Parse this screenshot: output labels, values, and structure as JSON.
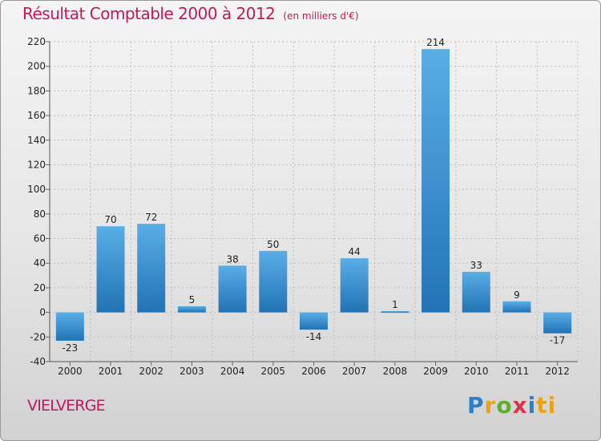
{
  "chart_data": {
    "type": "bar",
    "title": "Résultat Comptable 2000 à 2012",
    "subtitle": "(en milliers d'€)",
    "categories": [
      "2000",
      "2001",
      "2002",
      "2003",
      "2004",
      "2005",
      "2006",
      "2007",
      "2008",
      "2009",
      "2010",
      "2011",
      "2012"
    ],
    "values": [
      -23,
      70,
      72,
      5,
      38,
      50,
      -14,
      44,
      1,
      214,
      33,
      9,
      -17
    ],
    "value_labels": [
      "-23",
      "70",
      "72",
      "5",
      "38",
      "50",
      "-14",
      "44",
      "1",
      "214",
      "33",
      "9",
      "-17"
    ],
    "y_ticks": [
      "-40",
      "-20",
      "0",
      "20",
      "40",
      "60",
      "80",
      "100",
      "120",
      "140",
      "160",
      "180",
      "200",
      "220"
    ],
    "ylim": [
      -40,
      220
    ],
    "xlabel": "",
    "ylabel": "",
    "grid": true,
    "colors": {
      "bar_top": "#5aaee6",
      "bar_bottom": "#2173b5",
      "title": "#c2185b"
    }
  },
  "footer": {
    "place_name": "VIELVERGE",
    "logo_letters": [
      "P",
      "r",
      "o",
      "x",
      "i",
      "ti"
    ]
  }
}
